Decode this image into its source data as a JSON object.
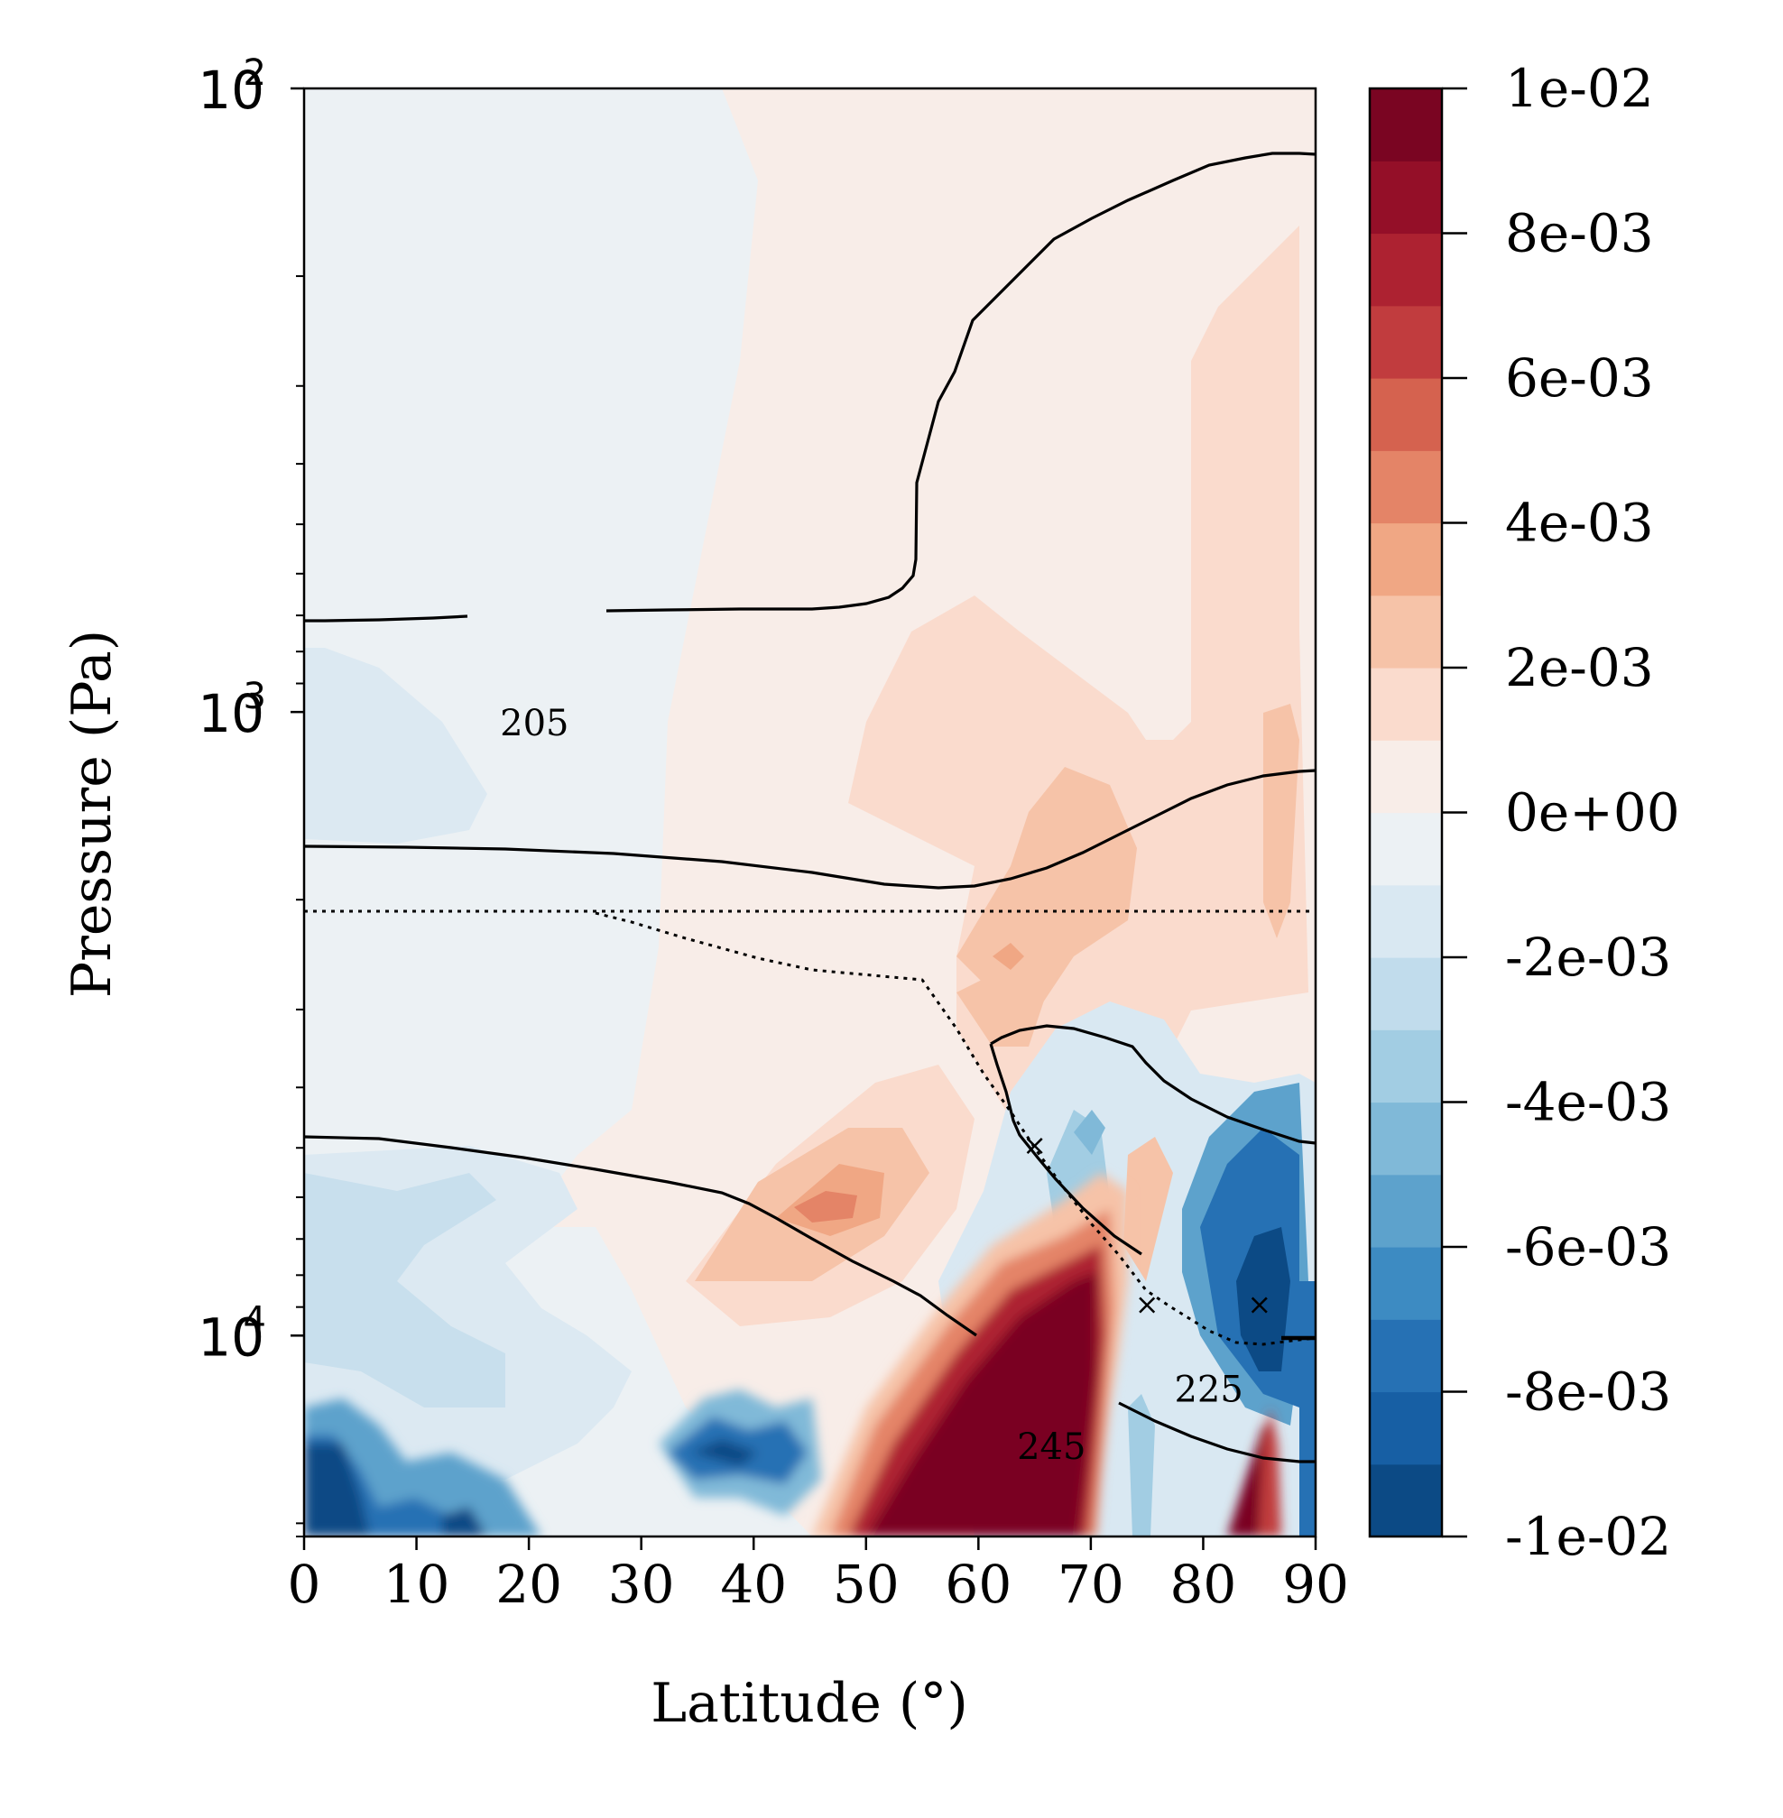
{
  "chart_data": {
    "type": "heatmap",
    "xlabel": "Latitude (°)",
    "ylabel": "Pressure (Pa)",
    "xlim": [
      0,
      90
    ],
    "ylim": [
      100,
      21000
    ],
    "yscale": "log",
    "y_inverted": true,
    "grid": false,
    "x_ticks": [
      0,
      10,
      20,
      30,
      40,
      50,
      60,
      70,
      80,
      90
    ],
    "y_ticks": [
      {
        "value": 100,
        "base": "10",
        "exp": "2"
      },
      {
        "value": 1000,
        "base": "10",
        "exp": "3"
      },
      {
        "value": 10000,
        "base": "10",
        "exp": "4"
      }
    ],
    "colorbar": {
      "min": -0.01,
      "max": 0.01,
      "levels": 20,
      "tick_labels": [
        "1e-02",
        "8e-03",
        "6e-03",
        "4e-03",
        "2e-03",
        "0e+00",
        "-2e-03",
        "-4e-03",
        "-6e-03",
        "-8e-03",
        "-1e-02"
      ],
      "colors": [
        "#0c4a85",
        "#175fa4",
        "#2671b4",
        "#3d8bc2",
        "#5da2cc",
        "#80b9d8",
        "#a2cde3",
        "#c1dcec",
        "#d9e8f2",
        "#ecf1f4",
        "#f8ede8",
        "#fadbcd",
        "#f6c3a8",
        "#f0a784",
        "#e48467",
        "#d5624f",
        "#c13c3e",
        "#ad2231",
        "#940f28",
        "#7a0522"
      ]
    },
    "contour_labels": [
      {
        "text": "205",
        "x": 20.5,
        "y": 1055
      },
      {
        "text": "225",
        "x": 80.5,
        "y": 12350
      },
      {
        "text": "245",
        "x": 66.5,
        "y": 15250
      }
    ],
    "markers": [
      {
        "symbol": "×",
        "x": 65,
        "y": 4950
      },
      {
        "symbol": "×",
        "x": 75,
        "y": 8900
      },
      {
        "symbol": "×",
        "x": 85,
        "y": 8900
      }
    ]
  }
}
